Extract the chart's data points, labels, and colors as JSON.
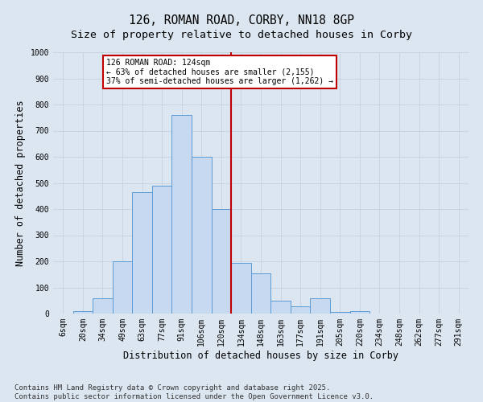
{
  "title": "126, ROMAN ROAD, CORBY, NN18 8GP",
  "subtitle": "Size of property relative to detached houses in Corby",
  "xlabel": "Distribution of detached houses by size in Corby",
  "ylabel": "Number of detached properties",
  "categories": [
    "6sqm",
    "20sqm",
    "34sqm",
    "49sqm",
    "63sqm",
    "77sqm",
    "91sqm",
    "106sqm",
    "120sqm",
    "134sqm",
    "148sqm",
    "163sqm",
    "177sqm",
    "191sqm",
    "205sqm",
    "220sqm",
    "234sqm",
    "248sqm",
    "262sqm",
    "277sqm",
    "291sqm"
  ],
  "bar_values": [
    0,
    10,
    60,
    200,
    465,
    490,
    760,
    600,
    400,
    195,
    155,
    50,
    28,
    60,
    5,
    8,
    0,
    0,
    0,
    0,
    0
  ],
  "bar_color": "#c6d9f0",
  "bar_edge_color": "#5b9bd5",
  "grid_color": "#c8d4e3",
  "bg_color": "#dce6f1",
  "vline_x": 8.5,
  "vline_color": "#c00000",
  "annotation_text": "126 ROMAN ROAD: 124sqm\n← 63% of detached houses are smaller (2,155)\n37% of semi-detached houses are larger (1,262) →",
  "annotation_box_color": "#c00000",
  "ylim": [
    0,
    1000
  ],
  "yticks": [
    0,
    100,
    200,
    300,
    400,
    500,
    600,
    700,
    800,
    900,
    1000
  ],
  "footer": "Contains HM Land Registry data © Crown copyright and database right 2025.\nContains public sector information licensed under the Open Government Licence v3.0.",
  "title_fontsize": 10.5,
  "subtitle_fontsize": 9.5,
  "axis_label_fontsize": 8.5,
  "tick_fontsize": 7,
  "footer_fontsize": 6.5
}
